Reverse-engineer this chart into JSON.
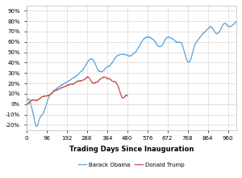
{
  "title": "",
  "xlabel": "Trading Days Since Inauguration",
  "ylabel": "",
  "obama_color": "#5ba3d9",
  "trump_color": "#c0504d",
  "background_color": "#ffffff",
  "plot_bg_color": "#ffffff",
  "grid_color": "#d0d0d0",
  "ylim": [
    -25,
    95
  ],
  "xlim": [
    0,
    1000
  ],
  "yticks": [
    -20,
    -10,
    0,
    10,
    20,
    30,
    40,
    50,
    60,
    70,
    80,
    90
  ],
  "xticks": [
    0,
    96,
    192,
    288,
    384,
    480,
    576,
    672,
    768,
    864,
    960
  ],
  "legend_labels": [
    "Barack Obama",
    "Donald Trump"
  ],
  "linewidth": 0.9
}
